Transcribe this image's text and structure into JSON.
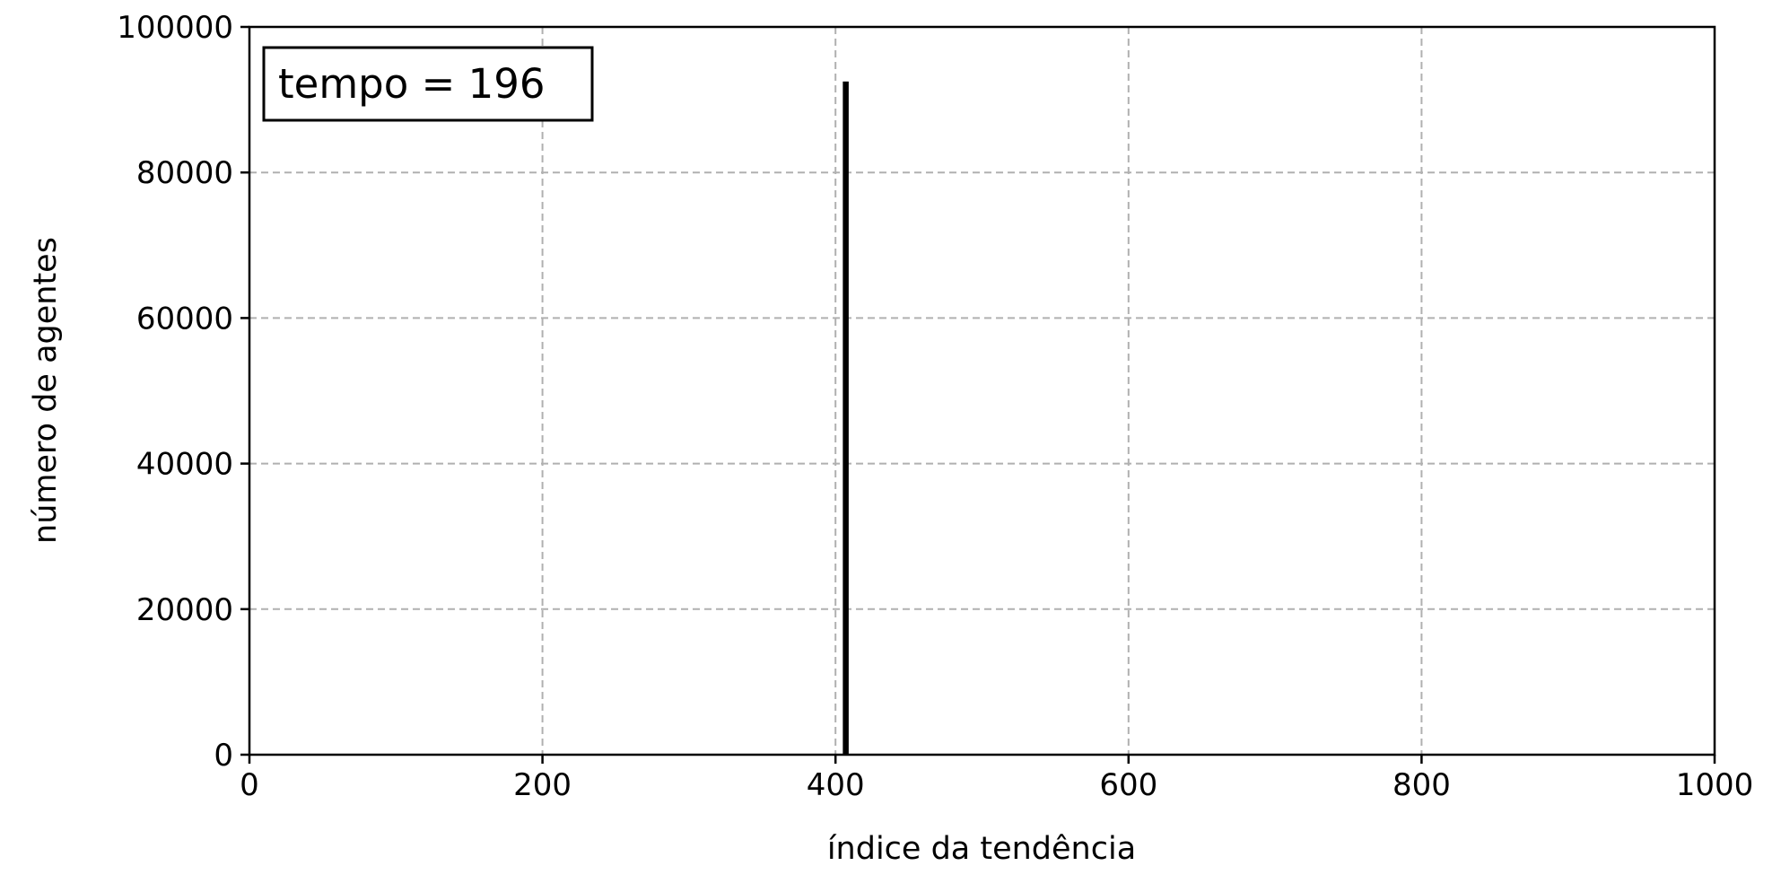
{
  "chart_data": {
    "type": "bar",
    "title": "",
    "xlabel": "índice da tendência",
    "ylabel": "número de agentes",
    "xlim": [
      0,
      1000
    ],
    "ylim": [
      0,
      100000
    ],
    "xticks": [
      0,
      200,
      400,
      600,
      800,
      1000
    ],
    "yticks": [
      0,
      20000,
      40000,
      60000,
      80000,
      100000
    ],
    "xtick_labels": [
      "0",
      "200",
      "400",
      "600",
      "800",
      "1000"
    ],
    "ytick_labels": [
      "0",
      "20000",
      "40000",
      "60000",
      "80000",
      "100000"
    ],
    "grid": true,
    "bar_color": "#000000",
    "grid_color": "#b0b0b0",
    "bars": [
      {
        "x": 405,
        "width": 4,
        "value": 92500
      }
    ],
    "annotation": {
      "text": "tempo = 196",
      "location": "top-left"
    }
  }
}
